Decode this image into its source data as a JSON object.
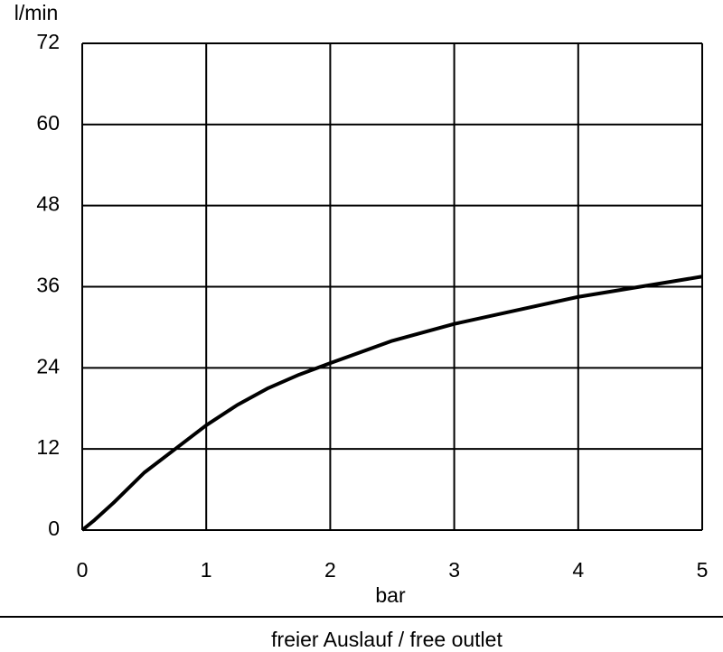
{
  "chart_data": {
    "type": "line",
    "y_label": "l/min",
    "x_label": "bar",
    "caption": "freier Auslauf / free outlet",
    "x": [
      0,
      0.1,
      0.25,
      0.5,
      0.75,
      1,
      1.25,
      1.5,
      1.75,
      2,
      2.5,
      3,
      3.5,
      4,
      4.5,
      5
    ],
    "series": [
      {
        "color": "#000000",
        "values": [
          0,
          1.5,
          4,
          8.5,
          12,
          15.5,
          18.5,
          21,
          23,
          24.7,
          28,
          30.5,
          32.5,
          34.5,
          36,
          37.5
        ]
      }
    ],
    "xlim": [
      0,
      5
    ],
    "xticks": [
      0,
      1,
      2,
      3,
      4,
      5
    ],
    "ylim": [
      0,
      72
    ],
    "yticks": [
      0,
      12,
      24,
      36,
      48,
      60,
      72
    ],
    "grid": true
  }
}
